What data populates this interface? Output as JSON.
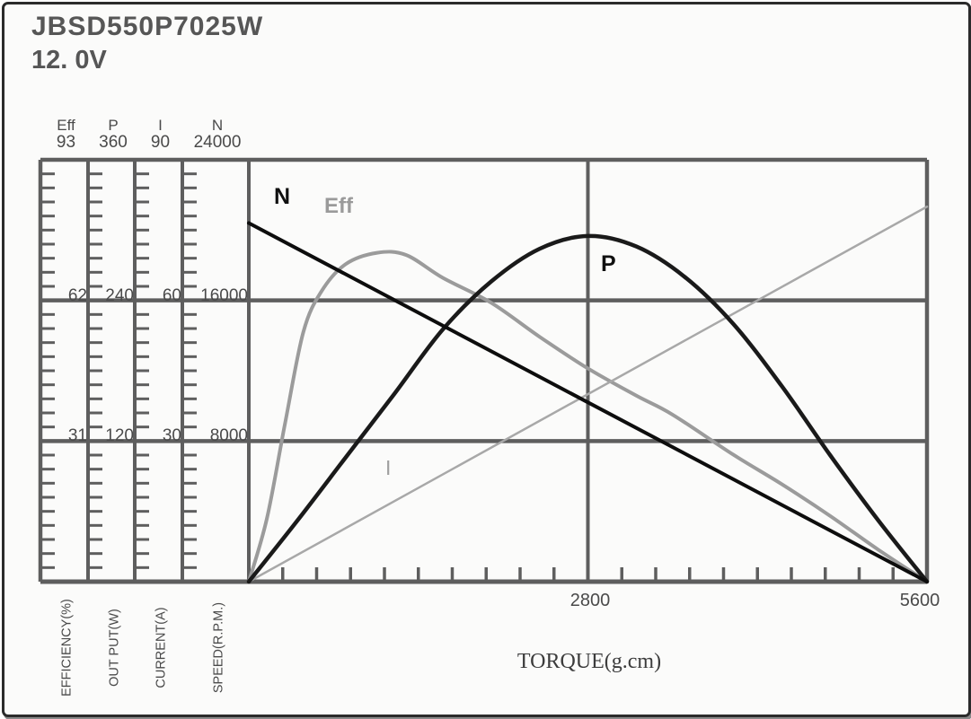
{
  "header": {
    "model": "JBSD550P7025W",
    "voltage": "12. 0V"
  },
  "scales": [
    {
      "name": "Eff",
      "max": "93",
      "two_thirds": "62",
      "one_third": "31",
      "axis_label": "EFFICIENCY(%)"
    },
    {
      "name": "P",
      "max": "360",
      "two_thirds": "240",
      "one_third": "120",
      "axis_label": "OUT PUT(W)"
    },
    {
      "name": "I",
      "max": "90",
      "two_thirds": "60",
      "one_third": "30",
      "axis_label": "CURRENT(A)"
    },
    {
      "name": "N",
      "max": "24000",
      "two_thirds": "16000",
      "one_third": "8000",
      "axis_label": "SPEED(R.P.M.)"
    }
  ],
  "x_axis": {
    "mid_label": "2800",
    "end_label": "5600",
    "title": "TORQUE(g.cm)"
  },
  "curve_labels": {
    "n": "N",
    "eff": "Eff",
    "p": "P",
    "i": "I"
  },
  "colors": {
    "grid": "#5e5e5e",
    "text": "#3f3f3f",
    "n": "#0d0d0d",
    "p": "#1a1a1a",
    "eff": "#9b9b9b",
    "i": "#a8a8a8"
  },
  "chart_data": {
    "type": "line",
    "title": "JBSD550P7025W 12.0V motor performance curves",
    "xlabel": "TORQUE(g.cm)",
    "x_max": 5600,
    "x_ticks": [
      0,
      2800,
      5600
    ],
    "x_minor_step": 280,
    "grid": "on",
    "series": [
      {
        "name": "N",
        "unit": "R.P.M.",
        "axis_max": 24000,
        "color_key": "n",
        "width": 4,
        "points": [
          [
            0,
            20400
          ],
          [
            5600,
            0
          ]
        ]
      },
      {
        "name": "Eff",
        "unit": "%",
        "axis_max": 93,
        "color_key": "eff",
        "width": 4,
        "points": [
          [
            0,
            0
          ],
          [
            150,
            14
          ],
          [
            300,
            35
          ],
          [
            450,
            55
          ],
          [
            600,
            64
          ],
          [
            800,
            70
          ],
          [
            1060,
            72.5
          ],
          [
            1300,
            72
          ],
          [
            1600,
            67
          ],
          [
            2000,
            61.5
          ],
          [
            2400,
            54
          ],
          [
            2800,
            47
          ],
          [
            3200,
            41
          ],
          [
            3500,
            36.8
          ],
          [
            4000,
            28
          ],
          [
            4400,
            21.5
          ],
          [
            4800,
            14.5
          ],
          [
            5200,
            7
          ],
          [
            5600,
            0
          ]
        ]
      },
      {
        "name": "P",
        "unit": "W",
        "axis_max": 360,
        "color_key": "p",
        "width": 4.5,
        "points": [
          [
            0,
            0
          ],
          [
            400,
            52
          ],
          [
            800,
            106
          ],
          [
            1200,
            160
          ],
          [
            1600,
            215
          ],
          [
            2000,
            256
          ],
          [
            2400,
            284
          ],
          [
            2800,
            295
          ],
          [
            3200,
            286
          ],
          [
            3600,
            260
          ],
          [
            4000,
            220
          ],
          [
            4400,
            167
          ],
          [
            4800,
            108
          ],
          [
            5200,
            52
          ],
          [
            5600,
            0
          ]
        ]
      },
      {
        "name": "I",
        "unit": "A",
        "axis_max": 90,
        "color_key": "i",
        "width": 2.5,
        "points": [
          [
            0,
            0
          ],
          [
            5600,
            80
          ]
        ]
      }
    ]
  }
}
